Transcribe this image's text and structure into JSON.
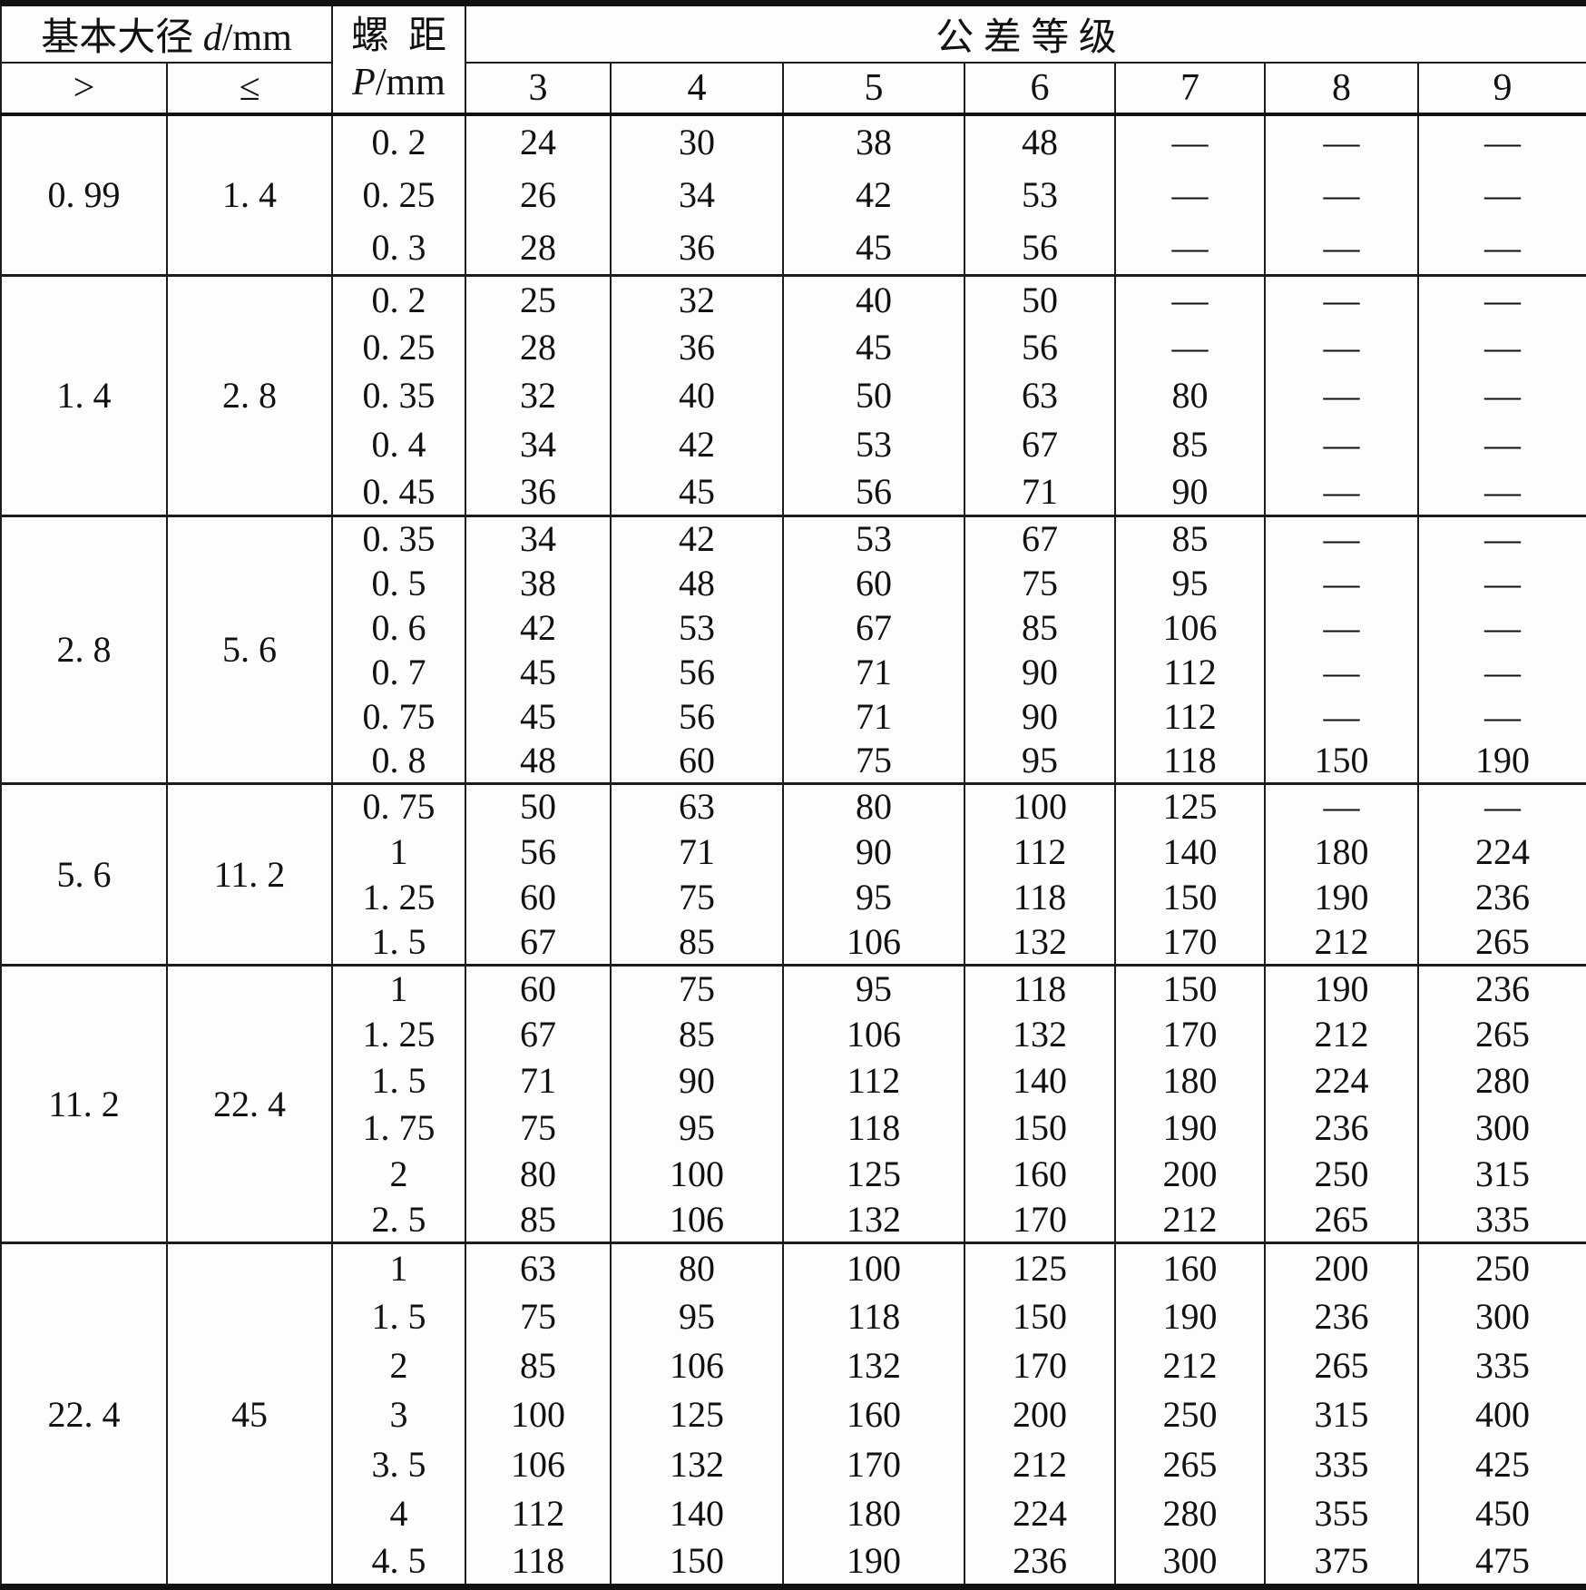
{
  "table": {
    "header": {
      "basic_diameter_label": "基本大径 ",
      "basic_diameter_symbol": "d",
      "basic_diameter_unit": "/mm",
      "pitch_label": "螺  距",
      "pitch_symbol": "P",
      "pitch_unit": "/mm",
      "tolerance_label": "公 差 等 级",
      "gt_label": ">",
      "le_label": "≤",
      "grade_labels": [
        "3",
        "4",
        "5",
        "6",
        "7",
        "8",
        "9"
      ]
    },
    "groups": [
      {
        "gt": "0. 99",
        "le": "1. 4",
        "rows": [
          {
            "pitch": "0. 2",
            "values": [
              "24",
              "30",
              "38",
              "48",
              "—",
              "—",
              "—"
            ]
          },
          {
            "pitch": "0. 25",
            "values": [
              "26",
              "34",
              "42",
              "53",
              "—",
              "—",
              "—"
            ]
          },
          {
            "pitch": "0. 3",
            "values": [
              "28",
              "36",
              "45",
              "56",
              "—",
              "—",
              "—"
            ]
          }
        ]
      },
      {
        "gt": "1. 4",
        "le": "2. 8",
        "rows": [
          {
            "pitch": "0. 2",
            "values": [
              "25",
              "32",
              "40",
              "50",
              "—",
              "—",
              "—"
            ]
          },
          {
            "pitch": "0. 25",
            "values": [
              "28",
              "36",
              "45",
              "56",
              "—",
              "—",
              "—"
            ]
          },
          {
            "pitch": "0. 35",
            "values": [
              "32",
              "40",
              "50",
              "63",
              "80",
              "—",
              "—"
            ]
          },
          {
            "pitch": "0. 4",
            "values": [
              "34",
              "42",
              "53",
              "67",
              "85",
              "—",
              "—"
            ]
          },
          {
            "pitch": "0. 45",
            "values": [
              "36",
              "45",
              "56",
              "71",
              "90",
              "—",
              "—"
            ]
          }
        ]
      },
      {
        "gt": "2. 8",
        "le": "5. 6",
        "rows": [
          {
            "pitch": "0. 35",
            "values": [
              "34",
              "42",
              "53",
              "67",
              "85",
              "—",
              "—"
            ]
          },
          {
            "pitch": "0. 5",
            "values": [
              "38",
              "48",
              "60",
              "75",
              "95",
              "—",
              "—"
            ]
          },
          {
            "pitch": "0. 6",
            "values": [
              "42",
              "53",
              "67",
              "85",
              "106",
              "—",
              "—"
            ]
          },
          {
            "pitch": "0. 7",
            "values": [
              "45",
              "56",
              "71",
              "90",
              "112",
              "—",
              "—"
            ]
          },
          {
            "pitch": "0. 75",
            "values": [
              "45",
              "56",
              "71",
              "90",
              "112",
              "—",
              "—"
            ]
          },
          {
            "pitch": "0. 8",
            "values": [
              "48",
              "60",
              "75",
              "95",
              "118",
              "150",
              "190"
            ]
          }
        ]
      },
      {
        "gt": "5. 6",
        "le": "11. 2",
        "rows": [
          {
            "pitch": "0. 75",
            "values": [
              "50",
              "63",
              "80",
              "100",
              "125",
              "—",
              "—"
            ]
          },
          {
            "pitch": "1",
            "values": [
              "56",
              "71",
              "90",
              "112",
              "140",
              "180",
              "224"
            ]
          },
          {
            "pitch": "1. 25",
            "values": [
              "60",
              "75",
              "95",
              "118",
              "150",
              "190",
              "236"
            ]
          },
          {
            "pitch": "1. 5",
            "values": [
              "67",
              "85",
              "106",
              "132",
              "170",
              "212",
              "265"
            ]
          }
        ]
      },
      {
        "gt": "11. 2",
        "le": "22. 4",
        "rows": [
          {
            "pitch": "1",
            "values": [
              "60",
              "75",
              "95",
              "118",
              "150",
              "190",
              "236"
            ]
          },
          {
            "pitch": "1. 25",
            "values": [
              "67",
              "85",
              "106",
              "132",
              "170",
              "212",
              "265"
            ]
          },
          {
            "pitch": "1. 5",
            "values": [
              "71",
              "90",
              "112",
              "140",
              "180",
              "224",
              "280"
            ]
          },
          {
            "pitch": "1. 75",
            "values": [
              "75",
              "95",
              "118",
              "150",
              "190",
              "236",
              "300"
            ]
          },
          {
            "pitch": "2",
            "values": [
              "80",
              "100",
              "125",
              "160",
              "200",
              "250",
              "315"
            ]
          },
          {
            "pitch": "2. 5",
            "values": [
              "85",
              "106",
              "132",
              "170",
              "212",
              "265",
              "335"
            ]
          }
        ]
      },
      {
        "gt": "22. 4",
        "le": "45",
        "rows": [
          {
            "pitch": "1",
            "values": [
              "63",
              "80",
              "100",
              "125",
              "160",
              "200",
              "250"
            ]
          },
          {
            "pitch": "1. 5",
            "values": [
              "75",
              "95",
              "118",
              "150",
              "190",
              "236",
              "300"
            ]
          },
          {
            "pitch": "2",
            "values": [
              "85",
              "106",
              "132",
              "170",
              "212",
              "265",
              "335"
            ]
          },
          {
            "pitch": "3",
            "values": [
              "100",
              "125",
              "160",
              "200",
              "250",
              "315",
              "400"
            ]
          },
          {
            "pitch": "3. 5",
            "values": [
              "106",
              "132",
              "170",
              "212",
              "265",
              "335",
              "425"
            ]
          },
          {
            "pitch": "4",
            "values": [
              "112",
              "140",
              "180",
              "224",
              "280",
              "355",
              "450"
            ]
          },
          {
            "pitch": "4. 5",
            "values": [
              "118",
              "150",
              "190",
              "236",
              "300",
              "375",
              "475"
            ]
          }
        ]
      }
    ]
  }
}
